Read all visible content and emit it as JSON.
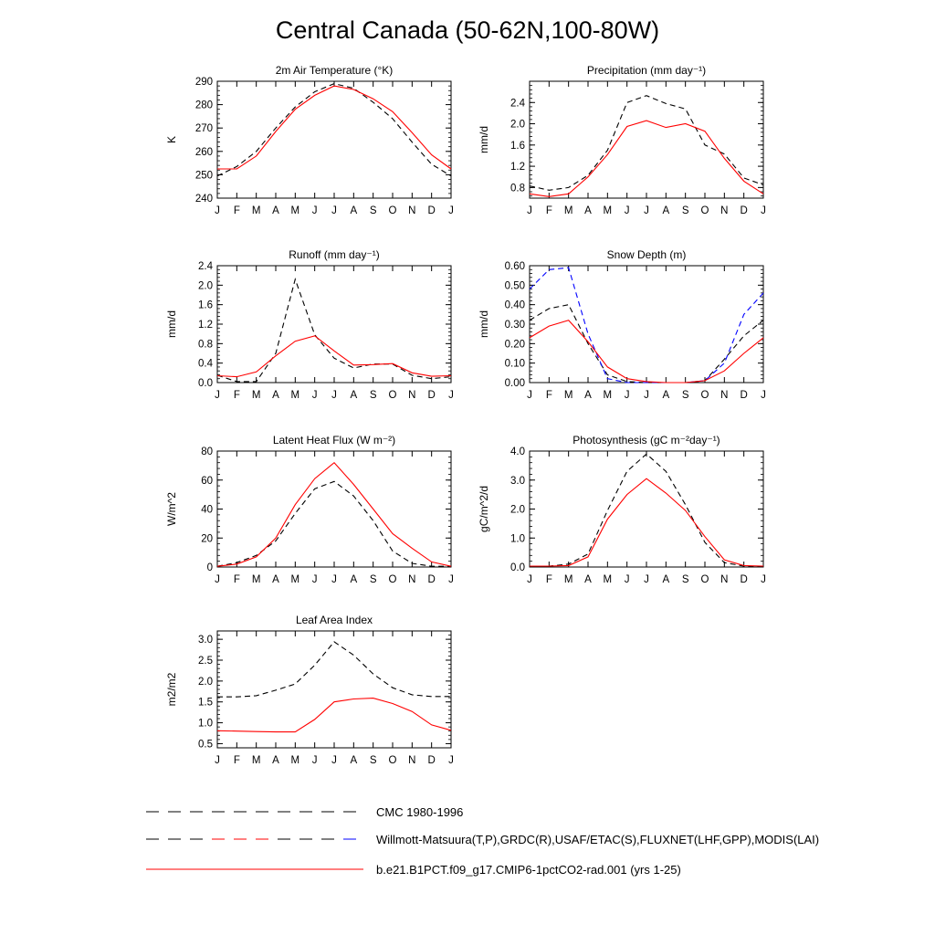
{
  "page": {
    "title": "Central Canada (50-62N,100-80W)"
  },
  "months": [
    "J",
    "F",
    "M",
    "A",
    "M",
    "J",
    "J",
    "A",
    "S",
    "O",
    "N",
    "D",
    "J"
  ],
  "legend": [
    {
      "label": "CMC 1980-1996",
      "style": "dashed",
      "colors": [
        "#000000"
      ]
    },
    {
      "label": "Willmott-Matsuura(T,P),GRDC(R),USAF/ETAC(S),FLUXNET(LHF,GPP),MODIS(LAI)",
      "style": "dashed",
      "colors": [
        "#000000",
        "#ff0000",
        "#0000ff"
      ]
    },
    {
      "label": "b.e21.B1PCT.f09_g17.CMIP6-1pctCO2-rad.001 (yrs 1-25)",
      "style": "solid",
      "colors": [
        "#ff0000"
      ]
    }
  ],
  "chart_data": [
    {
      "type": "line",
      "title": "2m Air Temperature (°K)",
      "ylabel": "K",
      "ylim": [
        240,
        290
      ],
      "yticks": [
        "240",
        "250",
        "260",
        "270",
        "280",
        "290"
      ],
      "ytick_values": [
        240,
        250,
        260,
        270,
        280,
        290
      ],
      "x": [
        "J",
        "F",
        "M",
        "A",
        "M",
        "J",
        "J",
        "A",
        "S",
        "O",
        "N",
        "D",
        "J"
      ],
      "series": [
        {
          "dash": true,
          "color": "#000000",
          "values": [
            249.5,
            253.5,
            260,
            270,
            279,
            285.5,
            289,
            287,
            281,
            274,
            264,
            254.5,
            249.5
          ]
        },
        {
          "dash": false,
          "color": "#ff0000",
          "values": [
            252.5,
            252.5,
            258,
            268.5,
            278,
            284,
            288,
            286.5,
            282.5,
            277,
            268,
            258.5,
            252.5
          ]
        }
      ]
    },
    {
      "type": "line",
      "title": "Precipitation (mm day⁻¹)",
      "ylabel": "mm/d",
      "ylim": [
        0.6,
        2.8
      ],
      "yticks": [
        "0.8",
        "1.2",
        "1.6",
        "2.0",
        "2.4"
      ],
      "ytick_values": [
        0.8,
        1.2,
        1.6,
        2.0,
        2.4
      ],
      "x": [
        "J",
        "F",
        "M",
        "A",
        "M",
        "J",
        "J",
        "A",
        "S",
        "O",
        "N",
        "D",
        "J"
      ],
      "series": [
        {
          "dash": true,
          "color": "#000000",
          "values": [
            0.83,
            0.75,
            0.8,
            1.03,
            1.5,
            2.4,
            2.53,
            2.38,
            2.28,
            1.6,
            1.43,
            0.98,
            0.85
          ]
        },
        {
          "dash": false,
          "color": "#ff0000",
          "values": [
            0.68,
            0.63,
            0.68,
            1.0,
            1.42,
            1.95,
            2.06,
            1.93,
            2.0,
            1.86,
            1.35,
            0.92,
            0.68
          ]
        }
      ]
    },
    {
      "type": "line",
      "title": "Runoff (mm day⁻¹)",
      "ylabel": "mm/d",
      "ylim": [
        0,
        2.4
      ],
      "yticks": [
        "0.0",
        "0.4",
        "0.8",
        "1.2",
        "1.6",
        "2.0",
        "2.4"
      ],
      "ytick_values": [
        0,
        0.4,
        0.8,
        1.2,
        1.6,
        2.0,
        2.4
      ],
      "x": [
        "J",
        "F",
        "M",
        "A",
        "M",
        "J",
        "J",
        "A",
        "S",
        "O",
        "N",
        "D",
        "J"
      ],
      "series": [
        {
          "dash": true,
          "color": "#000000",
          "values": [
            0.15,
            0.02,
            0.02,
            0.6,
            2.12,
            0.98,
            0.5,
            0.3,
            0.38,
            0.38,
            0.15,
            0.08,
            0.12
          ]
        },
        {
          "dash": false,
          "color": "#ff0000",
          "values": [
            0.14,
            0.12,
            0.22,
            0.55,
            0.85,
            0.96,
            0.65,
            0.36,
            0.37,
            0.39,
            0.2,
            0.13,
            0.14
          ]
        }
      ]
    },
    {
      "type": "line",
      "title": "Snow Depth (m)",
      "ylabel": "mm/d",
      "ylim": [
        0,
        0.6
      ],
      "yticks": [
        "0.00",
        "0.10",
        "0.20",
        "0.30",
        "0.40",
        "0.50",
        "0.60"
      ],
      "ytick_values": [
        0,
        0.1,
        0.2,
        0.3,
        0.4,
        0.5,
        0.6
      ],
      "x": [
        "J",
        "F",
        "M",
        "A",
        "M",
        "J",
        "J",
        "A",
        "S",
        "O",
        "N",
        "D",
        "J"
      ],
      "series": [
        {
          "dash": true,
          "color": "#000000",
          "values": [
            0.32,
            0.38,
            0.4,
            0.2,
            0.04,
            0.005,
            0.0,
            0.0,
            0.0,
            0.01,
            0.12,
            0.24,
            0.32
          ]
        },
        {
          "dash": true,
          "color": "#0000ff",
          "values": [
            0.48,
            0.58,
            0.59,
            0.25,
            0.02,
            0.0,
            0.0,
            0.0,
            0.0,
            0.01,
            0.1,
            0.35,
            0.46
          ]
        },
        {
          "dash": false,
          "color": "#ff0000",
          "values": [
            0.23,
            0.29,
            0.32,
            0.21,
            0.08,
            0.02,
            0.005,
            0.0,
            0.0,
            0.01,
            0.06,
            0.15,
            0.23
          ]
        }
      ]
    },
    {
      "type": "line",
      "title": "Latent Heat Flux (W m⁻²)",
      "ylabel": "W/m^2",
      "ylim": [
        0,
        80
      ],
      "yticks": [
        "0",
        "20",
        "40",
        "60",
        "80"
      ],
      "ytick_values": [
        0,
        20,
        40,
        60,
        80
      ],
      "x": [
        "J",
        "F",
        "M",
        "A",
        "M",
        "J",
        "J",
        "A",
        "S",
        "O",
        "N",
        "D",
        "J"
      ],
      "series": [
        {
          "dash": true,
          "color": "#000000",
          "values": [
            0.5,
            3,
            8,
            18,
            37,
            54,
            59,
            49,
            32,
            11,
            2.5,
            0.5,
            0.5
          ]
        },
        {
          "dash": false,
          "color": "#ff0000",
          "values": [
            0.5,
            2,
            7,
            20,
            43,
            61,
            72,
            57,
            40,
            23,
            13,
            3.5,
            0.5
          ]
        }
      ]
    },
    {
      "type": "line",
      "title": "Photosynthesis (gC m⁻²day⁻¹)",
      "ylabel": "gC/m^2/d",
      "ylim": [
        0,
        4
      ],
      "yticks": [
        "0.0",
        "1.0",
        "2.0",
        "3.0",
        "4.0"
      ],
      "ytick_values": [
        0,
        1,
        2,
        3,
        4
      ],
      "x": [
        "J",
        "F",
        "M",
        "A",
        "M",
        "J",
        "J",
        "A",
        "S",
        "O",
        "N",
        "D",
        "J"
      ],
      "series": [
        {
          "dash": true,
          "color": "#000000",
          "values": [
            0.03,
            0.03,
            0.1,
            0.45,
            1.95,
            3.3,
            3.9,
            3.3,
            2.15,
            0.85,
            0.15,
            0.03,
            0.03
          ]
        },
        {
          "dash": false,
          "color": "#ff0000",
          "values": [
            0.03,
            0.03,
            0.05,
            0.35,
            1.65,
            2.5,
            3.05,
            2.55,
            1.95,
            1.05,
            0.25,
            0.05,
            0.03
          ]
        }
      ]
    },
    {
      "type": "line",
      "title": "Leaf Area Index",
      "ylabel": "m2/m2",
      "ylim": [
        0.4,
        3.2
      ],
      "yticks": [
        "0.5",
        "1.0",
        "1.5",
        "2.0",
        "2.5",
        "3.0"
      ],
      "ytick_values": [
        0.5,
        1.0,
        1.5,
        2.0,
        2.5,
        3.0
      ],
      "x": [
        "J",
        "F",
        "M",
        "A",
        "M",
        "J",
        "J",
        "A",
        "S",
        "O",
        "N",
        "D",
        "J"
      ],
      "series": [
        {
          "dash": true,
          "color": "#000000",
          "values": [
            1.62,
            1.62,
            1.65,
            1.78,
            1.93,
            2.38,
            2.94,
            2.62,
            2.17,
            1.84,
            1.67,
            1.63,
            1.63
          ]
        },
        {
          "dash": false,
          "color": "#ff0000",
          "values": [
            0.81,
            0.8,
            0.79,
            0.78,
            0.78,
            1.08,
            1.5,
            1.57,
            1.59,
            1.46,
            1.27,
            0.95,
            0.82
          ]
        }
      ]
    }
  ]
}
